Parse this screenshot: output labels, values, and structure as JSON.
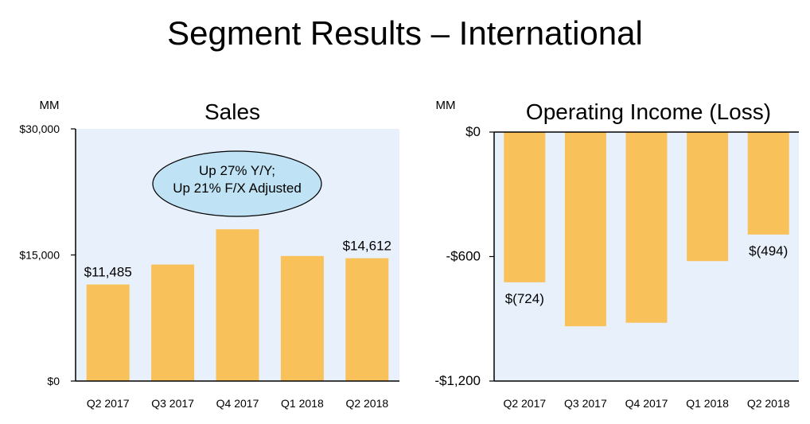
{
  "page": {
    "title": "Segment Results – International"
  },
  "colors": {
    "bar": "#F8C15A",
    "plot_bg": "#E8F0FB",
    "callout_fill": "#BFE3F4",
    "axis": "#000000"
  },
  "chart_data": [
    {
      "type": "bar",
      "title": "Sales",
      "unit": "MM",
      "categories": [
        "Q2 2017",
        "Q3 2017",
        "Q4 2017",
        "Q1 2018",
        "Q2 2018"
      ],
      "values": [
        11485,
        13859,
        18057,
        14875,
        14612
      ],
      "ylim": [
        0,
        30000
      ],
      "ytick_values": [
        0,
        15000,
        30000
      ],
      "ytick_labels": [
        "$0",
        "$15,000",
        "$30,000"
      ],
      "data_labels": [
        {
          "index": 0,
          "text": "$11,485"
        },
        {
          "index": 4,
          "text": "$14,612"
        }
      ],
      "callout": [
        "Up 27% Y/Y;",
        "Up 21% F/X Adjusted"
      ]
    },
    {
      "type": "bar",
      "title": "Operating Income (Loss)",
      "unit": "MM",
      "categories": [
        "Q2 2017",
        "Q3 2017",
        "Q4 2017",
        "Q1 2018",
        "Q2 2018"
      ],
      "values": [
        -724,
        -936,
        -919,
        -622,
        -494
      ],
      "ylim": [
        -1200,
        0
      ],
      "ytick_values": [
        0,
        -600,
        -1200
      ],
      "ytick_labels": [
        "$0",
        "-$600",
        "-$1,200"
      ],
      "data_labels": [
        {
          "index": 0,
          "text": "$(724)"
        },
        {
          "index": 4,
          "text": "$(494)"
        }
      ]
    }
  ]
}
